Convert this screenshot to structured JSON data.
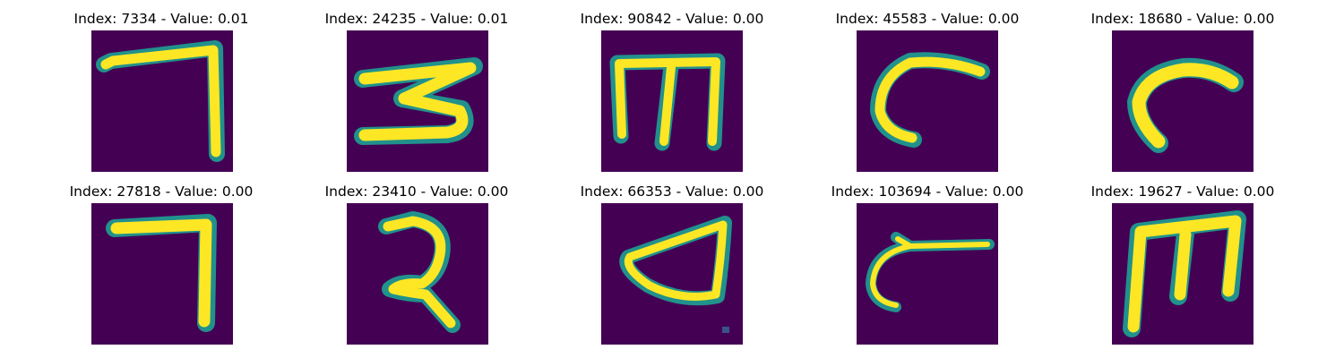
{
  "colors": {
    "background": "#440154",
    "stroke_mid": "#21918c",
    "stroke_edge": "#3b528b",
    "stroke_core": "#fde725",
    "stroke_inner": "#b5de2b"
  },
  "panels": [
    {
      "title": "Index: 7334 - Value: 0.01",
      "glyph": "seven"
    },
    {
      "title": "Index: 24235 - Value: 0.01",
      "glyph": "three"
    },
    {
      "title": "Index: 90842 - Value: 0.00",
      "glyph": "m"
    },
    {
      "title": "Index: 45583 - Value: 0.00",
      "glyph": "c-open"
    },
    {
      "title": "Index: 18680 - Value: 0.00",
      "glyph": "c-hook"
    },
    {
      "title": "Index: 27818 - Value: 0.00",
      "glyph": "seven-b"
    },
    {
      "title": "Index: 23410 - Value: 0.00",
      "glyph": "two"
    },
    {
      "title": "Index: 66353 - Value: 0.00",
      "glyph": "d"
    },
    {
      "title": "Index: 103694 - Value: 0.00",
      "glyph": "c-tail"
    },
    {
      "title": "Index: 19627 - Value: 0.00",
      "glyph": "m-bold"
    }
  ]
}
